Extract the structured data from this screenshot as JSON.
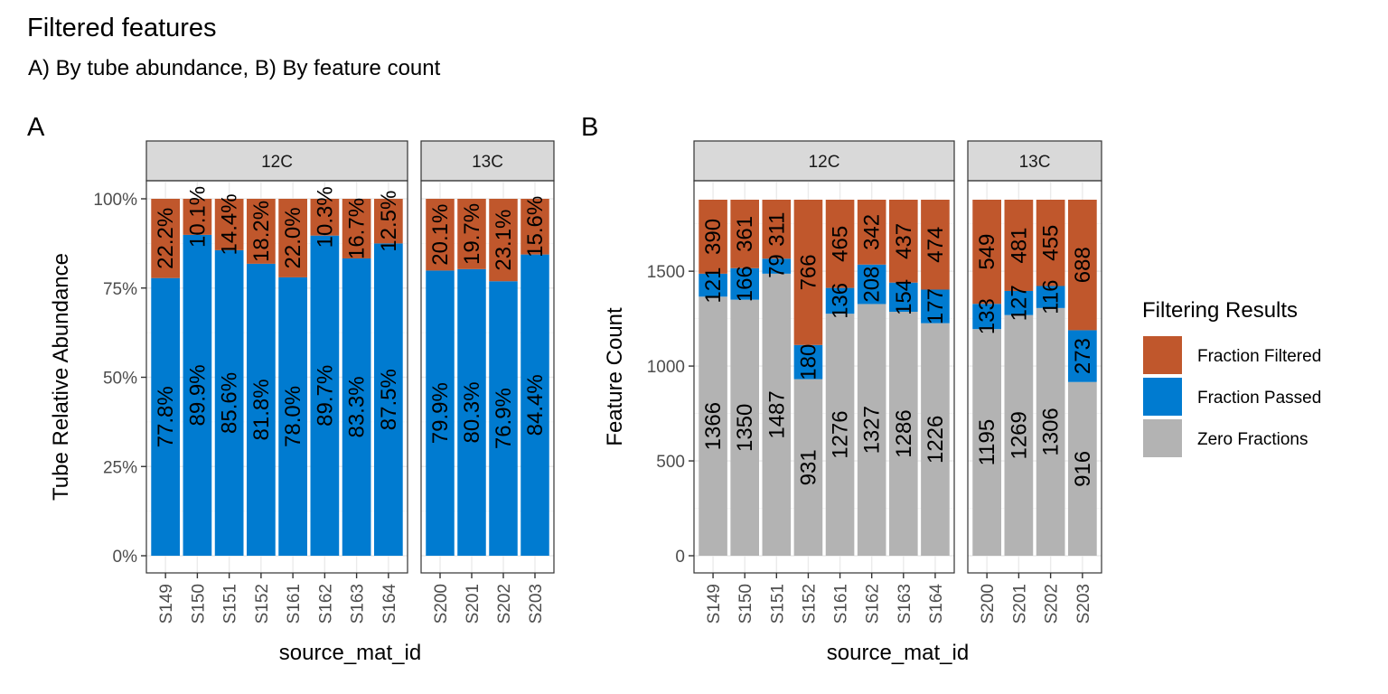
{
  "title": "Filtered features",
  "subtitle": "A) By tube abundance, B) By feature count",
  "legend": {
    "title": "Filtering Results",
    "items": [
      {
        "key": "filtered",
        "label": "Fraction Filtered",
        "color": "#c0572c"
      },
      {
        "key": "passed",
        "label": "Fraction Passed",
        "color": "#007bd0"
      },
      {
        "key": "zero",
        "label": "Zero Fractions",
        "color": "#b3b3b3"
      }
    ]
  },
  "chart_data": [
    {
      "tag": "A",
      "type": "bar",
      "stacked": true,
      "xlabel": "source_mat_id",
      "ylabel": "Tube Relative Abundance",
      "ylim": [
        0,
        1
      ],
      "yticks": [
        0,
        0.25,
        0.5,
        0.75,
        1.0
      ],
      "ytick_labels": [
        "0%",
        "25%",
        "50%",
        "75%",
        "100%"
      ],
      "grid": true,
      "facets": [
        {
          "label": "12C",
          "categories": [
            "S149",
            "S150",
            "S151",
            "S152",
            "S161",
            "S162",
            "S163",
            "S164"
          ],
          "series": [
            {
              "name": "Fraction Passed",
              "key": "passed",
              "values": [
                0.778,
                0.899,
                0.856,
                0.818,
                0.78,
                0.897,
                0.833,
                0.875
              ],
              "labels": [
                "77.8%",
                "89.9%",
                "85.6%",
                "81.8%",
                "78.0%",
                "89.7%",
                "83.3%",
                "87.5%"
              ]
            },
            {
              "name": "Fraction Filtered",
              "key": "filtered",
              "values": [
                0.222,
                0.101,
                0.144,
                0.182,
                0.22,
                0.103,
                0.167,
                0.125
              ],
              "labels": [
                "22.2%",
                "10.1%",
                "14.4%",
                "18.2%",
                "22.0%",
                "10.3%",
                "16.7%",
                "12.5%"
              ]
            }
          ]
        },
        {
          "label": "13C",
          "categories": [
            "S200",
            "S201",
            "S202",
            "S203"
          ],
          "series": [
            {
              "name": "Fraction Passed",
              "key": "passed",
              "values": [
                0.799,
                0.803,
                0.769,
                0.844
              ],
              "labels": [
                "79.9%",
                "80.3%",
                "76.9%",
                "84.4%"
              ]
            },
            {
              "name": "Fraction Filtered",
              "key": "filtered",
              "values": [
                0.201,
                0.197,
                0.231,
                0.156
              ],
              "labels": [
                "20.1%",
                "19.7%",
                "23.1%",
                "15.6%"
              ]
            }
          ]
        }
      ]
    },
    {
      "tag": "B",
      "type": "bar",
      "stacked": true,
      "xlabel": "source_mat_id",
      "ylabel": "Feature Count",
      "ylim": [
        0,
        1877
      ],
      "yticks": [
        0,
        500,
        1000,
        1500
      ],
      "ytick_labels": [
        "0",
        "500",
        "1000",
        "1500"
      ],
      "grid": true,
      "facets": [
        {
          "label": "12C",
          "categories": [
            "S149",
            "S150",
            "S151",
            "S152",
            "S161",
            "S162",
            "S163",
            "S164"
          ],
          "series": [
            {
              "name": "Zero Fractions",
              "key": "zero",
              "values": [
                1366,
                1350,
                1487,
                931,
                1276,
                1327,
                1286,
                1226
              ]
            },
            {
              "name": "Fraction Passed",
              "key": "passed",
              "values": [
                121,
                166,
                79,
                180,
                136,
                208,
                154,
                177
              ]
            },
            {
              "name": "Fraction Filtered",
              "key": "filtered",
              "values": [
                390,
                361,
                311,
                766,
                465,
                342,
                437,
                474
              ]
            }
          ]
        },
        {
          "label": "13C",
          "categories": [
            "S200",
            "S201",
            "S202",
            "S203"
          ],
          "series": [
            {
              "name": "Zero Fractions",
              "key": "zero",
              "values": [
                1195,
                1269,
                1306,
                916
              ]
            },
            {
              "name": "Fraction Passed",
              "key": "passed",
              "values": [
                133,
                127,
                116,
                273
              ]
            },
            {
              "name": "Fraction Filtered",
              "key": "filtered",
              "values": [
                549,
                481,
                455,
                688
              ]
            }
          ]
        }
      ]
    }
  ]
}
